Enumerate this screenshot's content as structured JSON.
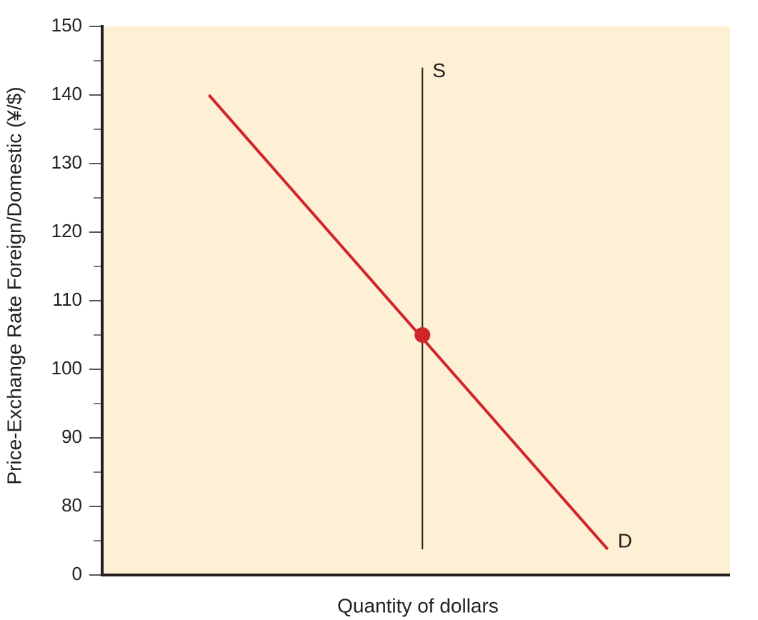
{
  "chart_data": {
    "type": "line",
    "xlabel": "Quantity of dollars",
    "ylabel": "Price-Exchange Rate Foreign/Domestic (¥/$)",
    "xlim": [
      0,
      100
    ],
    "ylim": [
      0,
      150
    ],
    "yticks": [
      0,
      80,
      90,
      100,
      110,
      120,
      130,
      140,
      150
    ],
    "background": "#fdf0d4",
    "series": [
      {
        "name": "S",
        "color": "#231f20",
        "x": [
          51,
          51
        ],
        "values": [
          144,
          30
        ]
      },
      {
        "name": "D",
        "color": "#d0262a",
        "x": [
          17,
          74.5,
          80.5
        ],
        "values": [
          140,
          80,
          30
        ]
      }
    ],
    "point": {
      "x": 51,
      "value": 105,
      "color": "#d0262a"
    }
  }
}
